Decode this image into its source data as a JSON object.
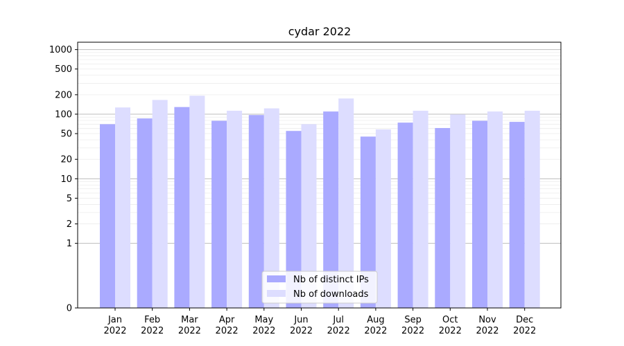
{
  "chart_data": {
    "type": "bar",
    "title": "cydar 2022",
    "xlabel": "",
    "ylabel": "",
    "y_scale": "symlog",
    "ylim": [
      0,
      1300
    ],
    "y_ticks": [
      0,
      1,
      2,
      5,
      10,
      20,
      50,
      100,
      200,
      500,
      1000
    ],
    "y_tick_labels": [
      "0",
      "1",
      "2",
      "5",
      "10",
      "20",
      "50",
      "100",
      "200",
      "500",
      "1000"
    ],
    "grid": true,
    "legend_position": "bottom-center",
    "categories": [
      {
        "month": "Jan",
        "year": "2022"
      },
      {
        "month": "Feb",
        "year": "2022"
      },
      {
        "month": "Mar",
        "year": "2022"
      },
      {
        "month": "Apr",
        "year": "2022"
      },
      {
        "month": "May",
        "year": "2022"
      },
      {
        "month": "Jun",
        "year": "2022"
      },
      {
        "month": "Jul",
        "year": "2022"
      },
      {
        "month": "Aug",
        "year": "2022"
      },
      {
        "month": "Sep",
        "year": "2022"
      },
      {
        "month": "Oct",
        "year": "2022"
      },
      {
        "month": "Nov",
        "year": "2022"
      },
      {
        "month": "Dec",
        "year": "2022"
      }
    ],
    "series": [
      {
        "name": "Nb of distinct IPs",
        "color": "#aaaaff",
        "values": [
          70,
          86,
          129,
          79,
          97,
          55,
          110,
          45,
          74,
          61,
          79,
          76
        ]
      },
      {
        "name": "Nb of downloads",
        "color": "#ddddff",
        "values": [
          127,
          166,
          193,
          113,
          123,
          70,
          175,
          58,
          113,
          99,
          110,
          113
        ]
      }
    ]
  }
}
